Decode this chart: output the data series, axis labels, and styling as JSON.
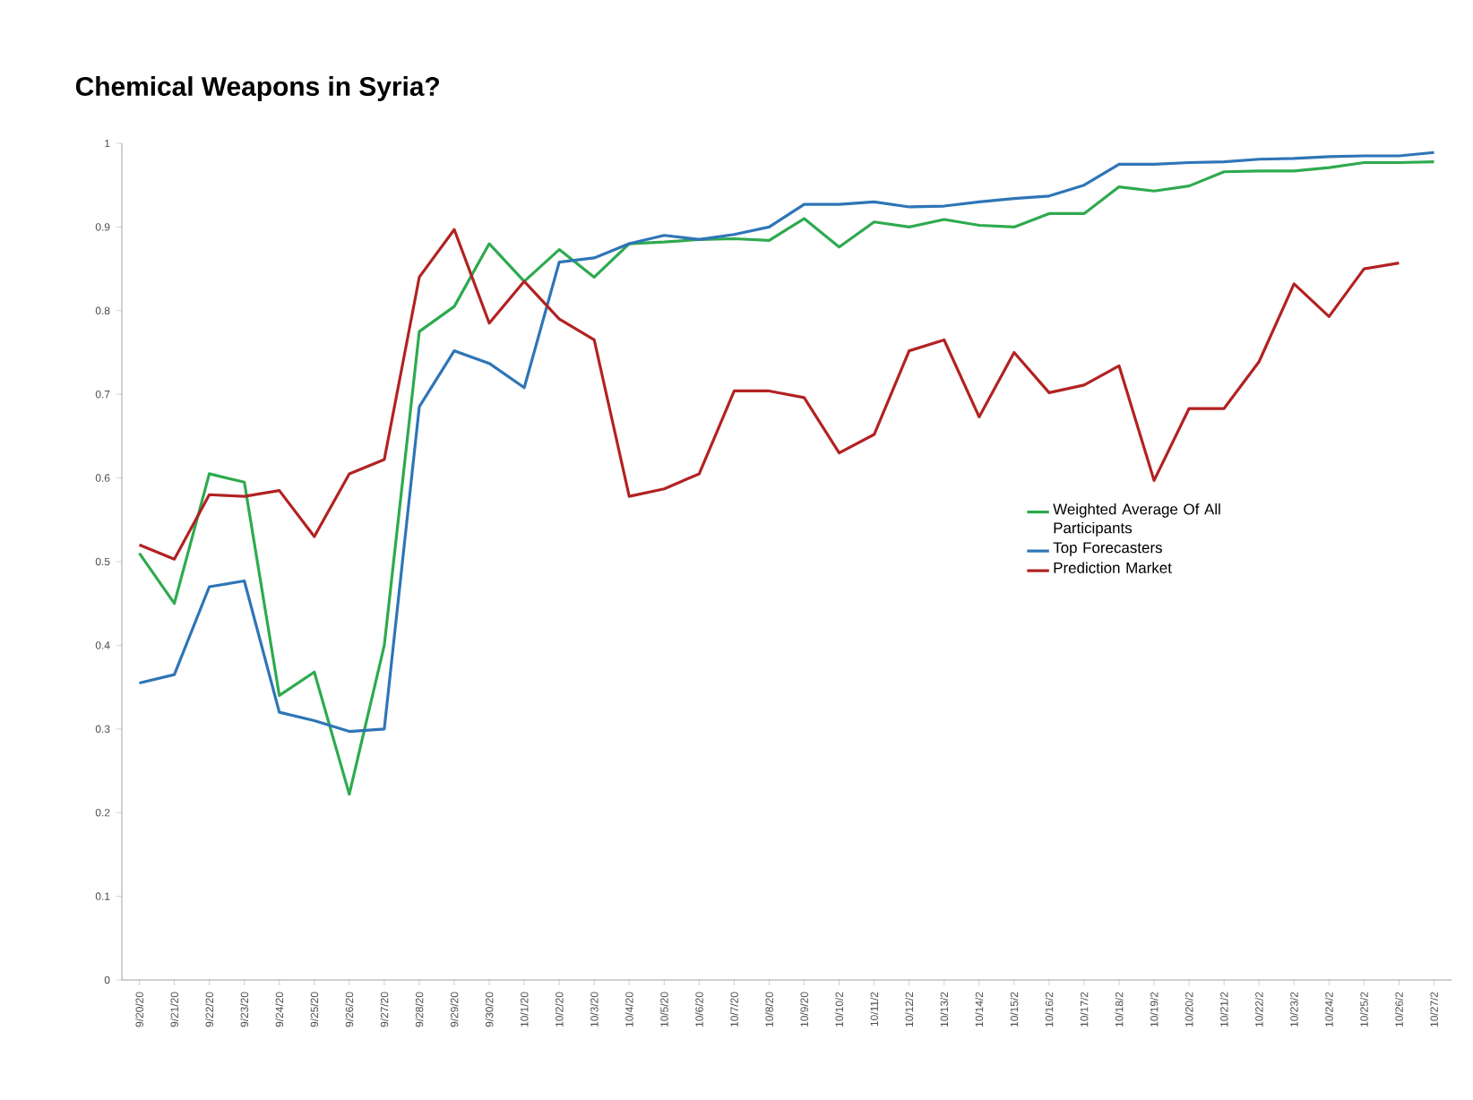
{
  "chart_data": {
    "type": "line",
    "title": "Chemical Weapons in Syria?",
    "categories": [
      "9/20/20",
      "9/21/20",
      "9/22/20",
      "9/23/20",
      "9/24/20",
      "9/25/20",
      "9/26/20",
      "9/27/20",
      "9/28/20",
      "9/29/20",
      "9/30/20",
      "10/1/20",
      "10/2/20",
      "10/3/20",
      "10/4/20",
      "10/5/20",
      "10/6/20",
      "10/7/20",
      "10/8/20",
      "10/9/20",
      "10/10/2",
      "10/11/2",
      "10/12/2",
      "10/13/2",
      "10/14/2",
      "10/15/2",
      "10/16/2",
      "10/17/2",
      "10/18/2",
      "10/19/2",
      "10/20/2",
      "10/21/2",
      "10/22/2",
      "10/23/2",
      "10/24/2",
      "10/25/2",
      "10/26/2",
      "10/27/2"
    ],
    "series": [
      {
        "name": "Weighted Average Of All Participants",
        "color": "#2eaa4f",
        "values": [
          0.51,
          0.45,
          0.605,
          0.595,
          0.34,
          0.368,
          0.222,
          0.4,
          0.775,
          0.805,
          0.88,
          0.835,
          0.873,
          0.84,
          0.88,
          0.882,
          0.885,
          0.886,
          0.884,
          0.91,
          0.876,
          0.906,
          0.9,
          0.909,
          0.902,
          0.9,
          0.916,
          0.916,
          0.948,
          0.943,
          0.949,
          0.966,
          0.967,
          0.967,
          0.971,
          0.977,
          0.977,
          0.978
        ]
      },
      {
        "name": "Top Forecasters",
        "color": "#2e75b6",
        "values": [
          0.355,
          0.365,
          0.47,
          0.477,
          0.32,
          0.31,
          0.297,
          0.3,
          0.685,
          0.752,
          0.737,
          0.708,
          0.858,
          0.863,
          0.88,
          0.89,
          0.885,
          0.891,
          0.9,
          0.927,
          0.927,
          0.93,
          0.924,
          0.925,
          0.93,
          0.934,
          0.937,
          0.95,
          0.975,
          0.975,
          0.977,
          0.978,
          0.981,
          0.982,
          0.984,
          0.985,
          0.985,
          0.989
        ]
      },
      {
        "name": "Prediction Market",
        "color": "#b22222",
        "values": [
          0.52,
          0.503,
          0.58,
          0.578,
          0.585,
          0.53,
          0.605,
          0.622,
          0.84,
          0.897,
          0.785,
          0.835,
          0.79,
          0.765,
          0.578,
          0.587,
          0.605,
          0.704,
          0.704,
          0.696,
          0.63,
          0.652,
          0.752,
          0.765,
          0.673,
          0.75,
          0.702,
          0.711,
          0.734,
          0.597,
          0.683,
          0.683,
          0.739,
          0.832,
          0.793,
          0.85,
          0.857,
          null
        ]
      }
    ],
    "ylim": [
      0,
      1
    ],
    "yticks": [
      0,
      0.1,
      0.2,
      0.3,
      0.4,
      0.5,
      0.6,
      0.7,
      0.8,
      0.9,
      1
    ],
    "legend": "right",
    "grid": false,
    "marker": "none",
    "line_style": "solid"
  }
}
